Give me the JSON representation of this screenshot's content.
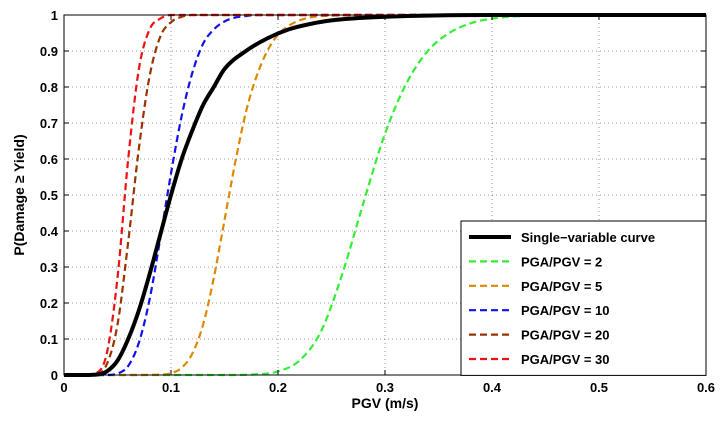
{
  "chart_data": {
    "type": "line",
    "title": "",
    "xlabel": "PGV (m/s)",
    "ylabel": "P(Damage ≥ Yield)",
    "xlim": [
      0,
      0.6
    ],
    "ylim": [
      0,
      1
    ],
    "xticks": [
      "0",
      "0.1",
      "0.2",
      "0.3",
      "0.4",
      "0.5",
      "0.6"
    ],
    "yticks": [
      "0",
      "0.1",
      "0.2",
      "0.3",
      "0.4",
      "0.5",
      "0.6",
      "0.7",
      "0.8",
      "0.9",
      "1"
    ],
    "grid": true,
    "legend_position": "bottom-right",
    "series": [
      {
        "name": "Single−variable curve",
        "color": "#000000",
        "style": "solid",
        "x": [
          0,
          0.02,
          0.03,
          0.04,
          0.05,
          0.06,
          0.07,
          0.08,
          0.09,
          0.1,
          0.11,
          0.12,
          0.13,
          0.14,
          0.15,
          0.17,
          0.19,
          0.21,
          0.23,
          0.25,
          0.3,
          0.4,
          0.6
        ],
        "y": [
          0,
          0,
          0.001,
          0.01,
          0.04,
          0.1,
          0.18,
          0.28,
          0.39,
          0.5,
          0.6,
          0.68,
          0.75,
          0.8,
          0.85,
          0.9,
          0.935,
          0.96,
          0.975,
          0.985,
          0.995,
          1,
          1
        ]
      },
      {
        "name": "PGA/PGV = 2",
        "color": "#33ee33",
        "style": "dashed",
        "x": [
          0,
          0.15,
          0.18,
          0.2,
          0.22,
          0.24,
          0.26,
          0.28,
          0.3,
          0.32,
          0.34,
          0.36,
          0.38,
          0.4,
          0.42,
          0.45,
          0.5,
          0.6
        ],
        "y": [
          0,
          0,
          0.002,
          0.01,
          0.04,
          0.12,
          0.28,
          0.48,
          0.67,
          0.81,
          0.9,
          0.95,
          0.977,
          0.99,
          0.996,
          1,
          1,
          1
        ]
      },
      {
        "name": "PGA/PGV = 5",
        "color": "#dd8800",
        "style": "dashed",
        "x": [
          0,
          0.06,
          0.09,
          0.1,
          0.11,
          0.12,
          0.13,
          0.14,
          0.15,
          0.16,
          0.17,
          0.18,
          0.19,
          0.2,
          0.21,
          0.22,
          0.24,
          0.3,
          0.6
        ],
        "y": [
          0,
          0,
          0.001,
          0.005,
          0.02,
          0.06,
          0.14,
          0.27,
          0.43,
          0.59,
          0.73,
          0.83,
          0.9,
          0.945,
          0.97,
          0.985,
          0.997,
          1,
          1
        ]
      },
      {
        "name": "PGA/PGV = 10",
        "color": "#1111ee",
        "style": "dashed",
        "x": [
          0,
          0.04,
          0.05,
          0.06,
          0.07,
          0.08,
          0.09,
          0.1,
          0.11,
          0.12,
          0.13,
          0.14,
          0.15,
          0.16,
          0.17,
          0.18,
          0.2,
          0.6
        ],
        "y": [
          0,
          0,
          0.004,
          0.025,
          0.09,
          0.21,
          0.38,
          0.56,
          0.72,
          0.84,
          0.92,
          0.96,
          0.982,
          0.993,
          0.997,
          1,
          1,
          1
        ]
      },
      {
        "name": "PGA/PGV = 20",
        "color": "#993300",
        "style": "dashed",
        "x": [
          0,
          0.02,
          0.03,
          0.04,
          0.05,
          0.06,
          0.07,
          0.08,
          0.09,
          0.1,
          0.11,
          0.12,
          0.14,
          0.6
        ],
        "y": [
          0,
          0,
          0.002,
          0.03,
          0.14,
          0.37,
          0.63,
          0.83,
          0.94,
          0.98,
          0.995,
          1,
          1,
          1
        ]
      },
      {
        "name": "PGA/PGV = 30",
        "color": "#ee1111",
        "style": "dashed",
        "x": [
          0,
          0.02,
          0.03,
          0.04,
          0.05,
          0.06,
          0.07,
          0.08,
          0.09,
          0.1,
          0.12,
          0.6
        ],
        "y": [
          0,
          0,
          0.005,
          0.06,
          0.27,
          0.6,
          0.85,
          0.96,
          0.99,
          1,
          1,
          1
        ]
      }
    ]
  }
}
